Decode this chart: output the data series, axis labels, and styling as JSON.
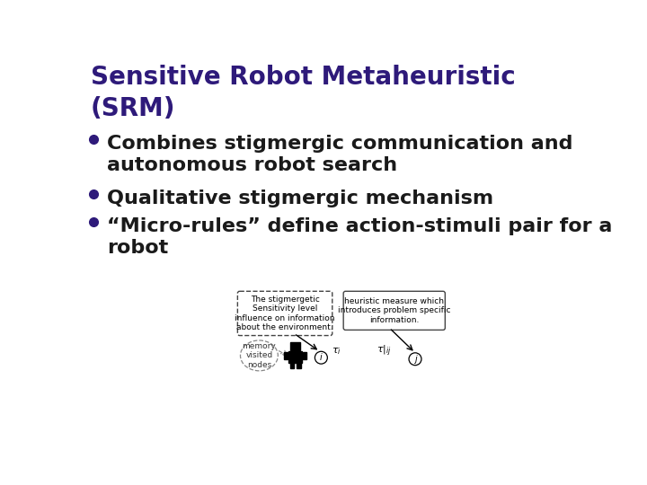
{
  "title_line1": "Sensitive Robot Metaheuristic",
  "title_line2": "(SRM)",
  "title_color": "#2E1A7A",
  "bullet_color": "#1a1a1a",
  "bullet_dot_color": "#2E1A7A",
  "bullets": [
    "Combines stigmergic communication and\nautonomous robot search",
    "Qualitative stigmergic mechanism",
    "“Micro-rules” define action-stimuli pair for a\nrobot"
  ],
  "bg_color": "#ffffff",
  "diagram_box1_text": "The stigmergetic\nSensitivity level\ninfluence on information\nabout the environment.",
  "diagram_box2_text": "heuristic measure which\nintroduces problem specific\ninformation.",
  "diagram_circle_text": "memory\nvisited\nnodes",
  "font_size_title": 20,
  "font_size_bullets": 16,
  "font_size_diagram": 6.5
}
